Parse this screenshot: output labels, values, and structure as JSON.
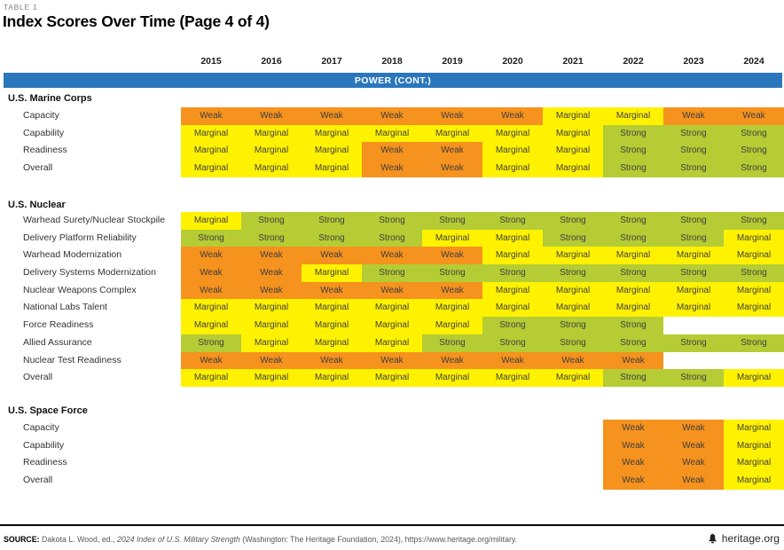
{
  "table_label": "TABLE 1",
  "title": "Index Scores Over Time (Page 4 of 4)",
  "band_label": "POWER (CONT.)",
  "colors": {
    "header_blue": "#2A77BD",
    "weak_orange": "#F6921E",
    "marginal_yellow": "#FFF200",
    "strong_green": "#B5CC34"
  },
  "score_colors": {
    "Weak": "#F6921E",
    "Marginal": "#FFF200",
    "Strong": "#B5CC34"
  },
  "chart_data": {
    "type": "table",
    "columns": [
      "2015",
      "2016",
      "2017",
      "2018",
      "2019",
      "2020",
      "2021",
      "2022",
      "2023",
      "2024"
    ],
    "sections": [
      {
        "name": "U.S. Marine Corps",
        "rows": [
          {
            "label": "Capacity",
            "values": [
              "Weak",
              "Weak",
              "Weak",
              "Weak",
              "Weak",
              "Weak",
              "Marginal",
              "Marginal",
              "Weak",
              "Weak"
            ]
          },
          {
            "label": "Capability",
            "values": [
              "Marginal",
              "Marginal",
              "Marginal",
              "Marginal",
              "Marginal",
              "Marginal",
              "Marginal",
              "Strong",
              "Strong",
              "Strong"
            ]
          },
          {
            "label": "Readiness",
            "values": [
              "Marginal",
              "Marginal",
              "Marginal",
              "Weak",
              "Weak",
              "Marginal",
              "Marginal",
              "Strong",
              "Strong",
              "Strong"
            ]
          },
          {
            "label": "Overall",
            "values": [
              "Marginal",
              "Marginal",
              "Marginal",
              "Weak",
              "Weak",
              "Marginal",
              "Marginal",
              "Strong",
              "Strong",
              "Strong"
            ]
          }
        ]
      },
      {
        "name": "U.S. Nuclear",
        "rows": [
          {
            "label": "Warhead Surety/Nuclear Stockpile",
            "values": [
              "Marginal",
              "Strong",
              "Strong",
              "Strong",
              "Strong",
              "Strong",
              "Strong",
              "Strong",
              "Strong",
              "Strong"
            ]
          },
          {
            "label": "Delivery Platform Reliability",
            "values": [
              "Strong",
              "Strong",
              "Strong",
              "Strong",
              "Marginal",
              "Marginal",
              "Strong",
              "Strong",
              "Strong",
              "Marginal"
            ]
          },
          {
            "label": "Warhead Modernization",
            "values": [
              "Weak",
              "Weak",
              "Weak",
              "Weak",
              "Weak",
              "Marginal",
              "Marginal",
              "Marginal",
              "Marginal",
              "Marginal"
            ]
          },
          {
            "label": "Delivery Systems Modernization",
            "values": [
              "Weak",
              "Weak",
              "Marginal",
              "Strong",
              "Strong",
              "Strong",
              "Strong",
              "Strong",
              "Strong",
              "Strong"
            ]
          },
          {
            "label": "Nuclear Weapons Complex",
            "values": [
              "Weak",
              "Weak",
              "Weak",
              "Weak",
              "Weak",
              "Marginal",
              "Marginal",
              "Marginal",
              "Marginal",
              "Marginal"
            ]
          },
          {
            "label": "National Labs Talent",
            "values": [
              "Marginal",
              "Marginal",
              "Marginal",
              "Marginal",
              "Marginal",
              "Marginal",
              "Marginal",
              "Marginal",
              "Marginal",
              "Marginal"
            ]
          },
          {
            "label": "Force Readiness",
            "values": [
              "Marginal",
              "Marginal",
              "Marginal",
              "Marginal",
              "Marginal",
              "Strong",
              "Strong",
              "Strong",
              "",
              ""
            ]
          },
          {
            "label": "Allied Assurance",
            "values": [
              "Strong",
              "Marginal",
              "Marginal",
              "Marginal",
              "Strong",
              "Strong",
              "Strong",
              "Strong",
              "Strong",
              "Strong"
            ]
          },
          {
            "label": "Nuclear Test Readiness",
            "values": [
              "Weak",
              "Weak",
              "Weak",
              "Weak",
              "Weak",
              "Weak",
              "Weak",
              "Weak",
              "",
              ""
            ]
          },
          {
            "label": "Overall",
            "values": [
              "Marginal",
              "Marginal",
              "Marginal",
              "Marginal",
              "Marginal",
              "Marginal",
              "Marginal",
              "Strong",
              "Strong",
              "Marginal"
            ]
          }
        ]
      },
      {
        "name": "U.S. Space Force",
        "rows": [
          {
            "label": "Capacity",
            "values": [
              "",
              "",
              "",
              "",
              "",
              "",
              "",
              "Weak",
              "Weak",
              "Marginal"
            ]
          },
          {
            "label": "Capability",
            "values": [
              "",
              "",
              "",
              "",
              "",
              "",
              "",
              "Weak",
              "Weak",
              "Marginal"
            ]
          },
          {
            "label": "Readiness",
            "values": [
              "",
              "",
              "",
              "",
              "",
              "",
              "",
              "Weak",
              "Weak",
              "Marginal"
            ]
          },
          {
            "label": "Overall",
            "values": [
              "",
              "",
              "",
              "",
              "",
              "",
              "",
              "Weak",
              "Weak",
              "Marginal"
            ]
          }
        ]
      }
    ]
  },
  "footer": {
    "source_label": "SOURCE:",
    "source_text_1": " Dakota L. Wood, ed., ",
    "source_title_italic": "2024 Index of U.S. Military Strength",
    "source_text_2": " (Washington: The Heritage Foundation, 2024), https://www.heritage.org/military.",
    "brand": "heritage.org"
  }
}
